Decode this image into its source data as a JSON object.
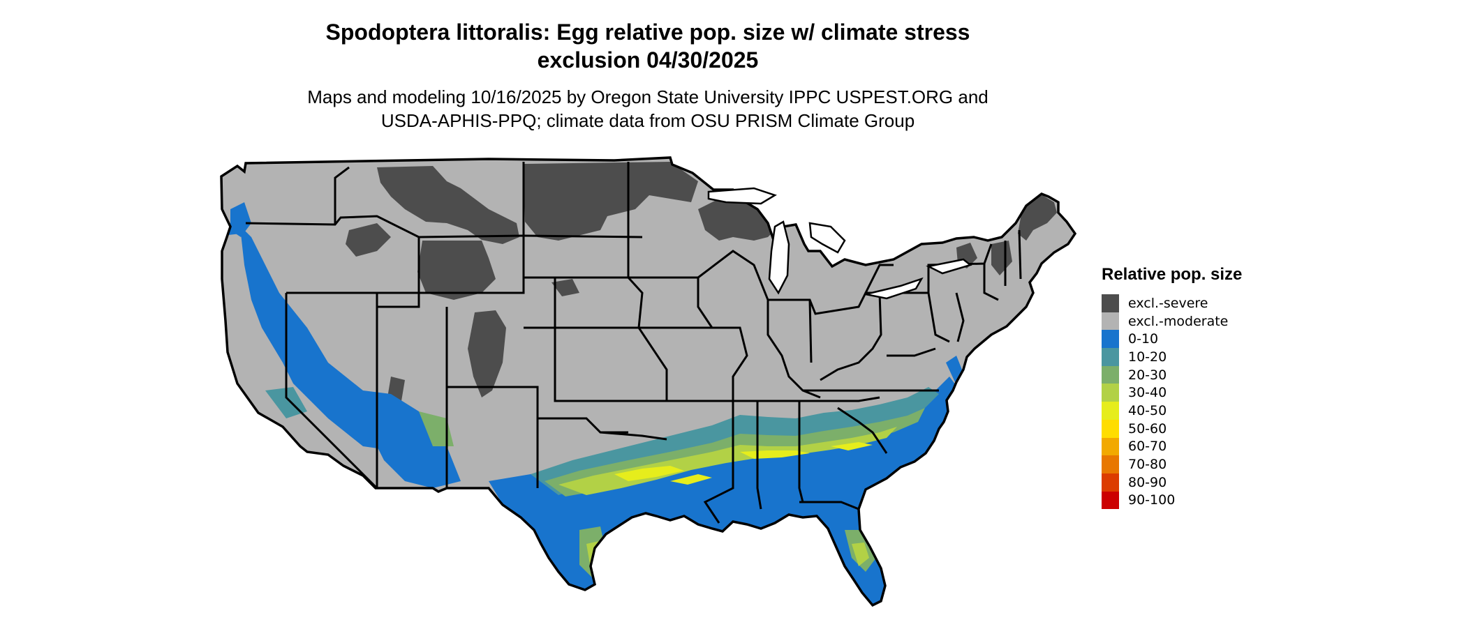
{
  "title_line1": "Spodoptera littoralis: Egg relative pop. size w/ climate stress",
  "title_line2": "exclusion 04/30/2025",
  "subtitle_line1": "Maps and modeling 10/16/2025 by Oregon State University IPPC USPEST.ORG and",
  "subtitle_line2": "USDA-APHIS-PPQ; climate data from OSU PRISM Climate Group",
  "legend": {
    "title": "Relative pop. size",
    "items": [
      {
        "label": "excl.-severe",
        "color": "#4d4d4d"
      },
      {
        "label": "excl.-moderate",
        "color": "#b3b3b3"
      },
      {
        "label": "0-10",
        "color": "#1874cd"
      },
      {
        "label": "10-20",
        "color": "#4a96a0"
      },
      {
        "label": "20-30",
        "color": "#7caf6a"
      },
      {
        "label": "30-40",
        "color": "#b2d146"
      },
      {
        "label": "40-50",
        "color": "#e6ed1c"
      },
      {
        "label": "50-60",
        "color": "#ffdd00"
      },
      {
        "label": "60-70",
        "color": "#f2a900"
      },
      {
        "label": "70-80",
        "color": "#e87700"
      },
      {
        "label": "80-90",
        "color": "#dc3c00"
      },
      {
        "label": "90-100",
        "color": "#cc0000"
      }
    ]
  }
}
